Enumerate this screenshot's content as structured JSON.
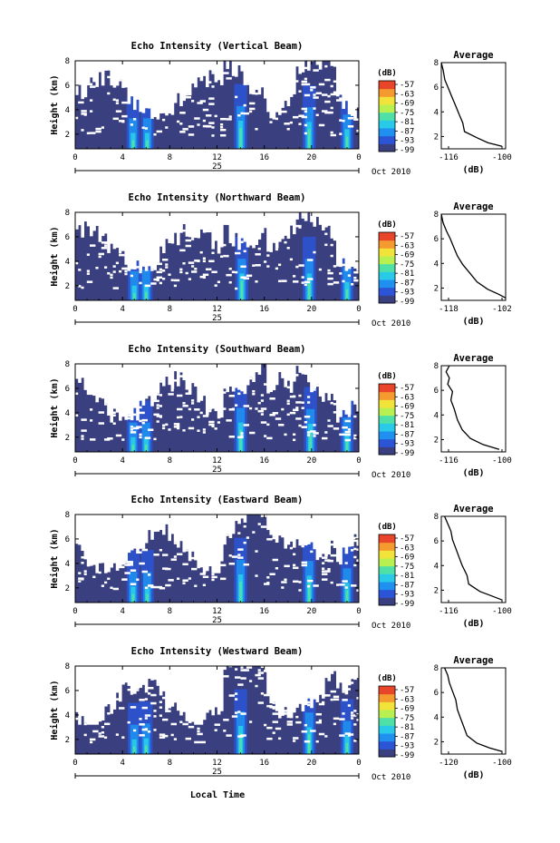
{
  "figure": {
    "xlabel": "Local Time",
    "date_label": "Oct 2010",
    "day_label": "25",
    "colorbar_unit": "(dB)",
    "colorbar_ticks": [
      "-57",
      "-63",
      "-69",
      "-75",
      "-81",
      "-87",
      "-93",
      "-99"
    ],
    "avg_title": "Average",
    "avg_xlabel": "(dB)",
    "colors": {
      "background": "#3a3f80",
      "colormap": [
        "#3a3f80",
        "#2b55d6",
        "#1f8ff0",
        "#29c9e8",
        "#4fe0a8",
        "#b7f050",
        "#f2e33a",
        "#f59a2f",
        "#e8452b"
      ]
    }
  },
  "chart_data": [
    {
      "type": "heatmap",
      "title": "Echo Intensity (Vertical Beam)",
      "ylabel": "Height (km)",
      "xticks": [
        "0",
        "4",
        "8",
        "12",
        "16",
        "20",
        "0"
      ],
      "yticks": [
        "2",
        "4",
        "6",
        "8"
      ],
      "xlim": [
        0,
        24
      ],
      "ylim": [
        0.8,
        8
      ],
      "hotspots": [
        [
          4.9,
          1.5
        ],
        [
          6.1,
          1.5
        ],
        [
          14.0,
          2.5
        ],
        [
          19.8,
          2.4
        ],
        [
          23.0,
          1.8
        ]
      ],
      "profile": {
        "type": "line",
        "xticks": [
          "-116",
          "-100"
        ],
        "yticks": [
          "2",
          "4",
          "6",
          "8"
        ],
        "xlim": [
          -118,
          -100
        ],
        "ylim": [
          1,
          8
        ],
        "x": [
          -118,
          -117.5,
          -117,
          -116,
          -115,
          -114,
          -113,
          -112,
          -111.5,
          -108,
          -105,
          -101
        ],
        "y": [
          8,
          7.4,
          6.6,
          5.9,
          5.2,
          4.5,
          3.8,
          3.1,
          2.4,
          1.9,
          1.5,
          1.2
        ]
      }
    },
    {
      "type": "heatmap",
      "title": "Echo Intensity (Northward Beam)",
      "ylabel": "Height (km)",
      "xticks": [
        "0",
        "4",
        "8",
        "12",
        "16",
        "20",
        "0"
      ],
      "yticks": [
        "2",
        "4",
        "6",
        "8"
      ],
      "xlim": [
        0,
        24
      ],
      "ylim": [
        0.8,
        8
      ],
      "hotspots": [
        [
          5.0,
          1.4
        ],
        [
          6.0,
          1.5
        ],
        [
          14.1,
          2.4
        ],
        [
          19.8,
          2.4
        ],
        [
          23.0,
          1.7
        ]
      ],
      "profile": {
        "type": "line",
        "xticks": [
          "-118",
          "-102"
        ],
        "yticks": [
          "2",
          "4",
          "6",
          "8"
        ],
        "xlim": [
          -120,
          -102
        ],
        "ylim": [
          1,
          8
        ],
        "x": [
          -120,
          -119.5,
          -118.5,
          -117.5,
          -116.5,
          -115.5,
          -114,
          -112,
          -110,
          -107,
          -104,
          -102
        ],
        "y": [
          8,
          7.3,
          6.6,
          6.0,
          5.3,
          4.6,
          3.9,
          3.2,
          2.5,
          1.9,
          1.5,
          1.2
        ]
      }
    },
    {
      "type": "heatmap",
      "title": "Echo Intensity (Southward Beam)",
      "ylabel": "Height (km)",
      "xticks": [
        "0",
        "4",
        "8",
        "12",
        "16",
        "20",
        "0"
      ],
      "yticks": [
        "2",
        "4",
        "6",
        "8"
      ],
      "xlim": [
        0,
        24
      ],
      "ylim": [
        0.8,
        8
      ],
      "hotspots": [
        [
          4.9,
          1.4
        ],
        [
          6.0,
          1.4
        ],
        [
          14.0,
          2.6
        ],
        [
          19.9,
          2.5
        ],
        [
          23.0,
          1.8
        ]
      ],
      "profile": {
        "type": "line",
        "xticks": [
          "-116",
          "-100"
        ],
        "yticks": [
          "2",
          "4",
          "6",
          "8"
        ],
        "xlim": [
          -120,
          -100
        ],
        "ylim": [
          1,
          8
        ],
        "x": [
          -117.5,
          -118.5,
          -117.5,
          -118,
          -116.5,
          -117,
          -116,
          -115,
          -113.5,
          -111,
          -107,
          -102
        ],
        "y": [
          8,
          7.5,
          7.0,
          6.5,
          5.9,
          5.2,
          4.5,
          3.6,
          2.8,
          2.1,
          1.6,
          1.2
        ]
      }
    },
    {
      "type": "heatmap",
      "title": "Echo Intensity (Eastward Beam)",
      "ylabel": "Height (km)",
      "xticks": [
        "0",
        "4",
        "8",
        "12",
        "16",
        "20",
        "0"
      ],
      "yticks": [
        "2",
        "4",
        "6",
        "8"
      ],
      "xlim": [
        0,
        24
      ],
      "ylim": [
        0.8,
        8
      ],
      "hotspots": [
        [
          4.9,
          1.5
        ],
        [
          6.1,
          1.5
        ],
        [
          14.0,
          2.5
        ],
        [
          19.8,
          2.4
        ],
        [
          23.0,
          1.8
        ]
      ],
      "profile": {
        "type": "line",
        "xticks": [
          "-116",
          "-100"
        ],
        "yticks": [
          "2",
          "4",
          "6",
          "8"
        ],
        "xlim": [
          -120,
          -100
        ],
        "ylim": [
          1,
          8
        ],
        "x": [
          -119,
          -118,
          -117,
          -116.5,
          -115.5,
          -114.5,
          -113.5,
          -112,
          -111.5,
          -108,
          -104,
          -101
        ],
        "y": [
          8,
          7.4,
          6.8,
          6.1,
          5.4,
          4.7,
          4.0,
          3.2,
          2.5,
          1.9,
          1.5,
          1.2
        ]
      }
    },
    {
      "type": "heatmap",
      "title": "Echo Intensity (Westward Beam)",
      "ylabel": "Height (km)",
      "xticks": [
        "0",
        "4",
        "8",
        "12",
        "16",
        "20",
        "0"
      ],
      "yticks": [
        "2",
        "4",
        "6",
        "8"
      ],
      "xlim": [
        0,
        24
      ],
      "ylim": [
        0.8,
        8
      ],
      "hotspots": [
        [
          5.0,
          1.4
        ],
        [
          6.0,
          1.5
        ],
        [
          14.0,
          2.5
        ],
        [
          19.8,
          2.4
        ],
        [
          23.0,
          1.7
        ]
      ],
      "profile": {
        "type": "line",
        "xticks": [
          "-120",
          "-100"
        ],
        "yticks": [
          "2",
          "4",
          "6",
          "8"
        ],
        "xlim": [
          -120,
          -100
        ],
        "ylim": [
          1,
          8
        ],
        "x": [
          -119,
          -118,
          -117.5,
          -116.5,
          -115.5,
          -115,
          -114,
          -113,
          -112,
          -109,
          -105,
          -101
        ],
        "y": [
          8,
          7.4,
          6.8,
          6.1,
          5.4,
          4.6,
          3.9,
          3.2,
          2.5,
          1.9,
          1.5,
          1.2
        ]
      }
    }
  ]
}
